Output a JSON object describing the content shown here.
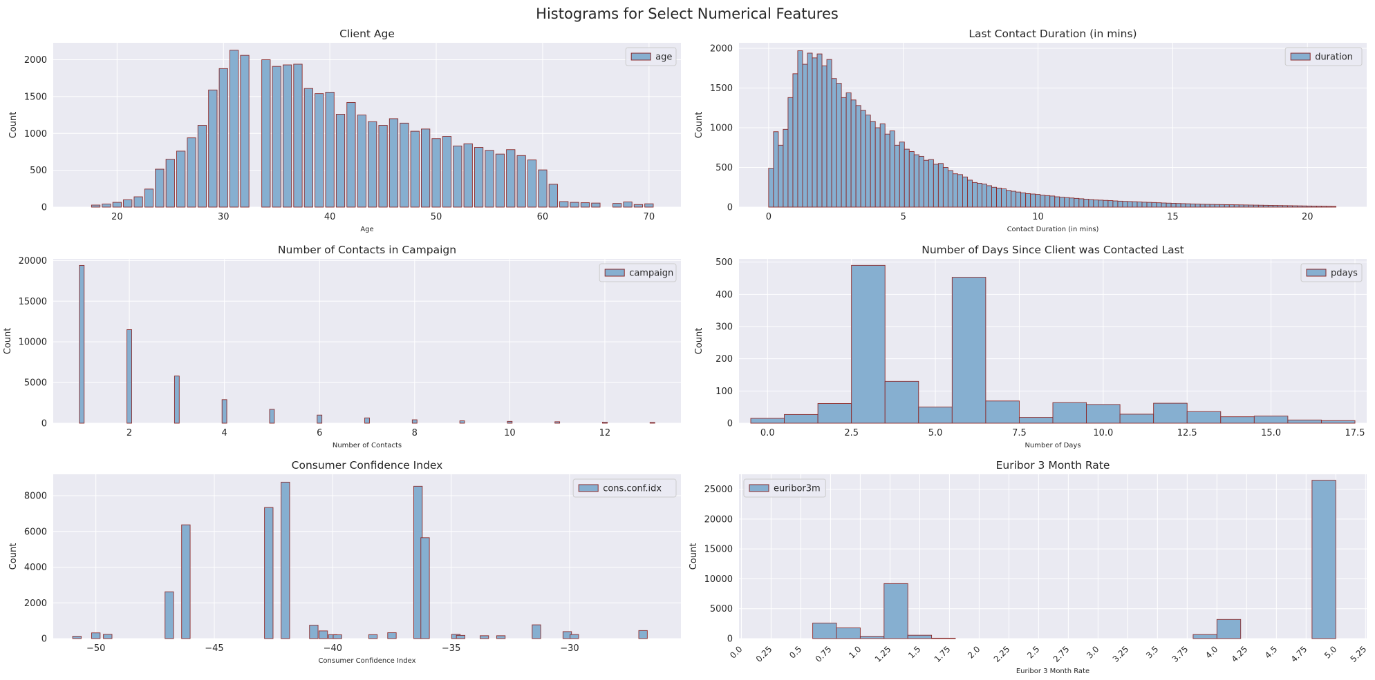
{
  "figure": {
    "title": "Histograms for Select Numerical Features"
  },
  "colors": {
    "plot_bg": "#eaeaf2",
    "grid": "#ffffff",
    "bar_fill": "#86afd0",
    "bar_edge": "#8b2a2a",
    "text": "#262626"
  },
  "chart_data": [
    {
      "type": "bar",
      "title": "Client Age",
      "xlabel": "Age",
      "ylabel": "Count",
      "legend": {
        "label": "age",
        "position": "top-right"
      },
      "xlim": [
        14,
        73
      ],
      "ylim": [
        0,
        2230
      ],
      "xticks": [
        20,
        30,
        40,
        50,
        60,
        70
      ],
      "yticks": [
        0,
        500,
        1000,
        1500,
        2000
      ],
      "bin_width": 0.8,
      "grid": true,
      "x": [
        18,
        19,
        20,
        21,
        22,
        23,
        24,
        25,
        26,
        27,
        28,
        29,
        30,
        31,
        32,
        33,
        34,
        35,
        36,
        37,
        38,
        39,
        40,
        41,
        42,
        43,
        44,
        45,
        46,
        47,
        48,
        49,
        50,
        51,
        52,
        53,
        54,
        55,
        56,
        57,
        58,
        59,
        60,
        61,
        62,
        63,
        64,
        65,
        66,
        67,
        68,
        69,
        70
      ],
      "values": [
        28,
        42,
        65,
        100,
        140,
        245,
        515,
        650,
        760,
        940,
        1110,
        1590,
        1880,
        2130,
        2060,
        0,
        2000,
        1910,
        1930,
        1940,
        1610,
        1540,
        1560,
        1260,
        1420,
        1250,
        1160,
        1110,
        1200,
        1140,
        1030,
        1060,
        930,
        960,
        830,
        860,
        810,
        770,
        720,
        780,
        700,
        640,
        505,
        310,
        75,
        65,
        60,
        55,
        0,
        50,
        70,
        35,
        45
      ]
    },
    {
      "type": "bar",
      "title": "Last Contact Duration (in mins)",
      "xlabel": "Contact Duration (in mins)",
      "ylabel": "Count",
      "legend": {
        "label": "duration",
        "position": "top-right"
      },
      "xlim": [
        -1.1,
        22.2
      ],
      "ylim": [
        0,
        2070
      ],
      "xticks": [
        0,
        5,
        10,
        15,
        20
      ],
      "yticks": [
        0,
        500,
        1000,
        1500,
        2000
      ],
      "bin_width": 0.18,
      "grid": true,
      "x": [
        0.09,
        0.27,
        0.45,
        0.63,
        0.81,
        0.99,
        1.17,
        1.35,
        1.53,
        1.71,
        1.89,
        2.07,
        2.25,
        2.43,
        2.61,
        2.79,
        2.97,
        3.15,
        3.33,
        3.51,
        3.69,
        3.87,
        4.05,
        4.23,
        4.41,
        4.59,
        4.77,
        4.95,
        5.13,
        5.31,
        5.49,
        5.67,
        5.85,
        6.03,
        6.21,
        6.39,
        6.57,
        6.75,
        6.93,
        7.11,
        7.29,
        7.47,
        7.65,
        7.83,
        8.01,
        8.19,
        8.37,
        8.55,
        8.73,
        8.91,
        9.09,
        9.27,
        9.45,
        9.63,
        9.81,
        9.99,
        10.17,
        10.35,
        10.53,
        10.71,
        10.89,
        11.07,
        11.25,
        11.43,
        11.61,
        11.79,
        11.97,
        12.15,
        12.33,
        12.51,
        12.69,
        12.87,
        13.05,
        13.23,
        13.41,
        13.59,
        13.77,
        13.95,
        14.13,
        14.31,
        14.49,
        14.67,
        14.85,
        15.03,
        15.21,
        15.39,
        15.57,
        15.75,
        15.93,
        16.11,
        16.29,
        16.47,
        16.65,
        16.83,
        17.01,
        17.19,
        17.37,
        17.55,
        17.73,
        17.91,
        18.09,
        18.27,
        18.45,
        18.63,
        18.81,
        18.99,
        19.17,
        19.35,
        19.53,
        19.71,
        19.89,
        20.07,
        20.25,
        20.43,
        20.61,
        20.79,
        20.97
      ],
      "values": [
        490,
        950,
        780,
        980,
        1380,
        1680,
        1970,
        1800,
        1940,
        1880,
        1930,
        1780,
        1860,
        1620,
        1560,
        1380,
        1440,
        1350,
        1280,
        1220,
        1160,
        1080,
        1000,
        1050,
        920,
        960,
        780,
        820,
        730,
        700,
        660,
        640,
        590,
        600,
        540,
        550,
        500,
        460,
        420,
        410,
        380,
        340,
        310,
        300,
        290,
        270,
        250,
        240,
        230,
        210,
        200,
        190,
        180,
        170,
        165,
        160,
        150,
        145,
        140,
        130,
        125,
        120,
        115,
        110,
        105,
        100,
        95,
        90,
        88,
        85,
        82,
        78,
        75,
        72,
        70,
        68,
        65,
        62,
        60,
        58,
        55,
        52,
        50,
        48,
        46,
        44,
        42,
        40,
        38,
        36,
        35,
        34,
        33,
        32,
        31,
        30,
        29,
        28,
        27,
        26,
        25,
        24,
        23,
        22,
        21,
        20,
        19,
        18,
        17,
        16,
        15,
        14,
        13,
        12,
        11,
        10,
        9
      ]
    },
    {
      "type": "bar",
      "title": "Number of Contacts in Campaign",
      "xlabel": "Number of Contacts",
      "ylabel": "Count",
      "legend": {
        "label": "campaign",
        "position": "top-right"
      },
      "xlim": [
        0.4,
        13.6
      ],
      "ylim": [
        0,
        20200
      ],
      "xticks": [
        2,
        4,
        6,
        8,
        10,
        12
      ],
      "yticks": [
        0,
        5000,
        10000,
        15000,
        20000
      ],
      "bin_width": 0.1,
      "grid": true,
      "x": [
        1,
        2,
        3,
        4,
        5,
        6,
        7,
        8,
        9,
        10,
        11,
        12,
        13
      ],
      "values": [
        19400,
        11500,
        5800,
        2900,
        1700,
        1000,
        650,
        420,
        290,
        225,
        180,
        130,
        100
      ]
    },
    {
      "type": "bar",
      "title": "Number of Days Since Client was Contacted Last",
      "xlabel": "Number of Days",
      "ylabel": "Count",
      "legend": {
        "label": "pdays",
        "position": "top-right"
      },
      "xlim": [
        -0.85,
        17.85
      ],
      "ylim": [
        0,
        510
      ],
      "xticks": [
        0,
        2.5,
        5,
        7.5,
        10,
        12.5,
        15,
        17.5
      ],
      "xtick_labels": [
        "0.0",
        "2.5",
        "5.0",
        "7.5",
        "10.0",
        "12.5",
        "15.0",
        "17.5"
      ],
      "yticks": [
        0,
        100,
        200,
        300,
        400,
        500
      ],
      "bin_width": 1,
      "grid": true,
      "x": [
        0,
        1,
        2,
        3,
        4,
        5,
        6,
        7,
        8,
        9,
        10,
        11,
        12,
        13,
        14,
        15,
        16,
        17
      ],
      "values": [
        15,
        27,
        61,
        490,
        130,
        50,
        453,
        69,
        18,
        64,
        58,
        28,
        62,
        36,
        20,
        22,
        10,
        8
      ]
    },
    {
      "type": "bar",
      "title": "Consumer Confidence Index",
      "xlabel": "Consumer Confidence Index",
      "ylabel": "Count",
      "legend": {
        "label": "cons.conf.idx",
        "position": "top-right"
      },
      "xlim": [
        -51.8,
        -25.3
      ],
      "ylim": [
        0,
        9200
      ],
      "xticks": [
        -50,
        -45,
        -40,
        -35,
        -30
      ],
      "xtick_labels": [
        "−50",
        "−45",
        "−40",
        "−35",
        "−30"
      ],
      "yticks": [
        0,
        2000,
        4000,
        6000,
        8000
      ],
      "bin_width": 0.36,
      "grid": true,
      "x": [
        -50.8,
        -50.0,
        -49.5,
        -46.9,
        -46.2,
        -42.7,
        -42.0,
        -40.8,
        -40.4,
        -40.0,
        -39.8,
        -38.3,
        -37.5,
        -36.4,
        -36.1,
        -34.8,
        -34.6,
        -33.6,
        -32.9,
        -31.4,
        -30.1,
        -29.8,
        -26.9
      ],
      "values": [
        130,
        320,
        240,
        2620,
        6370,
        7340,
        8760,
        750,
        430,
        220,
        210,
        220,
        330,
        8530,
        5650,
        240,
        180,
        160,
        160,
        770,
        390,
        230,
        450
      ]
    },
    {
      "type": "bar",
      "title": "Euribor 3 Month Rate",
      "xlabel": "Euribor 3 Month Rate",
      "ylabel": "Count",
      "legend": {
        "label": "euribor3m",
        "position": "top-left"
      },
      "xlim": [
        -0.02,
        5.26
      ],
      "ylim": [
        0,
        27500
      ],
      "xticks": [
        0,
        0.25,
        0.5,
        0.75,
        1,
        1.25,
        1.5,
        1.75,
        2,
        2.25,
        2.5,
        2.75,
        3,
        3.25,
        3.5,
        3.75,
        4,
        4.25,
        4.5,
        4.75,
        5,
        5.25
      ],
      "xtick_labels": [
        "0.0",
        "0.25",
        "0.5",
        "0.75",
        "1.0",
        "1.25",
        "1.5",
        "1.75",
        "2.0",
        "2.25",
        "2.5",
        "2.75",
        "3.0",
        "3.25",
        "3.5",
        "3.75",
        "4.0",
        "4.25",
        "4.5",
        "4.75",
        "5.0",
        "5.25"
      ],
      "xtick_rotation": 45,
      "yticks": [
        0,
        5000,
        10000,
        15000,
        20000,
        25000
      ],
      "bin_width": 0.2,
      "grid": true,
      "x": [
        0.7,
        0.9,
        1.1,
        1.3,
        1.5,
        1.7,
        3.9,
        4.1,
        4.9
      ],
      "values": [
        2600,
        1800,
        380,
        9200,
        560,
        70,
        680,
        3200,
        26500
      ]
    }
  ]
}
